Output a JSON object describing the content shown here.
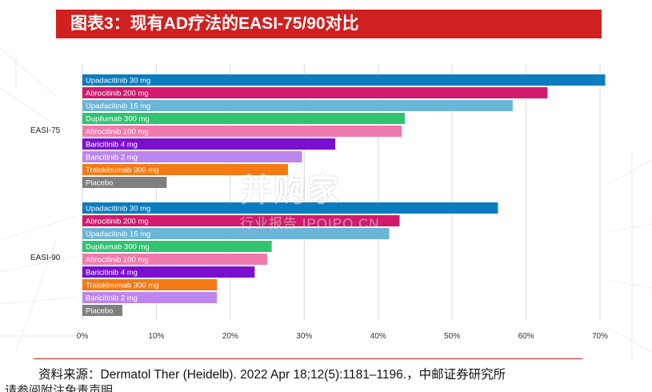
{
  "title": "图表3：现有AD疗法的EASI-75/90对比",
  "colors": {
    "title_bg": "#d0201f",
    "Upadacitinib 30 mg": "#0a7cbf",
    "Abrocitinib 200 mg": "#d21a6b",
    "Upadacitinib 15 mg": "#6ab5d8",
    "Dupilumab 300 mg": "#2ec470",
    "Abrocitinib 100 mg": "#f07aad",
    "Baricitinib 4 mg": "#7b0fd0",
    "Baricitinib 2 mg": "#bd85ef",
    "Tralokinumab 300 mg": "#f47a16",
    "Placebo": "#7f7f7f"
  },
  "chart_data": {
    "type": "bar",
    "orientation": "horizontal",
    "xlim": [
      0,
      70
    ],
    "ticks": [
      0,
      10,
      20,
      30,
      40,
      50,
      60,
      70
    ],
    "tick_suffix": "%",
    "grid": true,
    "groups": [
      {
        "name": "EASI-75",
        "bars": [
          {
            "label": "Upadacitinib 30 mg",
            "value": 70.7
          },
          {
            "label": "Abrocitinib 200 mg",
            "value": 62.9
          },
          {
            "label": "Upadacitinib 15 mg",
            "value": 58.2
          },
          {
            "label": "Dupilumab 300 mg",
            "value": 43.6
          },
          {
            "label": "Abrocitinib 100 mg",
            "value": 43.2
          },
          {
            "label": "Baricitinib 4 mg",
            "value": 34.2
          },
          {
            "label": "Baricitinib 2 mg",
            "value": 29.7
          },
          {
            "label": "Tralokinumab 300 mg",
            "value": 27.8
          },
          {
            "label": "Placebo",
            "value": 11.4
          }
        ]
      },
      {
        "name": "EASI-90",
        "bars": [
          {
            "label": "Upadacitinib 30 mg",
            "value": 56.2
          },
          {
            "label": "Abrocitinib 200 mg",
            "value": 42.9
          },
          {
            "label": "Upadacitinib 15 mg",
            "value": 41.5
          },
          {
            "label": "Dupilumab 300 mg",
            "value": 25.6
          },
          {
            "label": "Abrocitinib 100 mg",
            "value": 25.0
          },
          {
            "label": "Baricitinib 4 mg",
            "value": 23.3
          },
          {
            "label": "Tralokinumab 300 mg",
            "value": 18.2
          },
          {
            "label": "Baricitinib 2 mg",
            "value": 18.2
          },
          {
            "label": "Placebo",
            "value": 5.4
          }
        ]
      }
    ]
  },
  "watermark": {
    "main": "并购家",
    "sub": "行业报告 IPOIPO.CN"
  },
  "source": "资料来源：Dermatol Ther (Heidelb). 2022 Apr 18;12(5):1181–1196.，中邮证券研究所",
  "footer_cut": "请参阅附注免责声明"
}
